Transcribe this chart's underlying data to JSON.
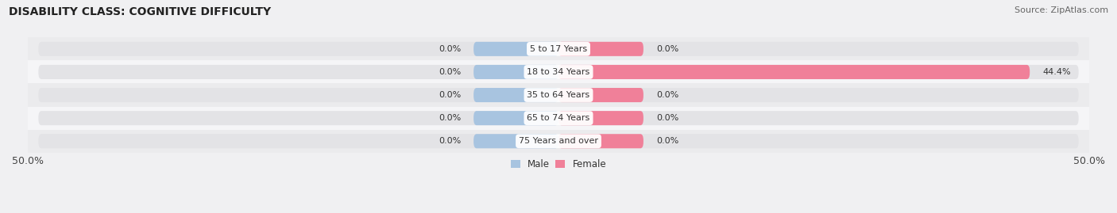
{
  "title": "DISABILITY CLASS: COGNITIVE DIFFICULTY",
  "source": "Source: ZipAtlas.com",
  "categories": [
    "5 to 17 Years",
    "18 to 34 Years",
    "35 to 64 Years",
    "65 to 74 Years",
    "75 Years and over"
  ],
  "male_values": [
    0.0,
    0.0,
    0.0,
    0.0,
    0.0
  ],
  "female_values": [
    0.0,
    44.4,
    0.0,
    0.0,
    0.0
  ],
  "male_color": "#a8c4e0",
  "female_color": "#f08099",
  "male_label": "Male",
  "female_label": "Female",
  "xlim_left": -50,
  "xlim_right": 50,
  "bar_bg_color": "#e3e3e6",
  "row_bg_colors": [
    "#ebebed",
    "#f5f5f7",
    "#ebebed",
    "#f5f5f7",
    "#ebebed"
  ],
  "title_fontsize": 10,
  "source_fontsize": 8,
  "label_fontsize": 8,
  "tick_fontsize": 9,
  "center_label_bg": "#ffffff",
  "min_stub_male": 8,
  "min_stub_female": 8
}
